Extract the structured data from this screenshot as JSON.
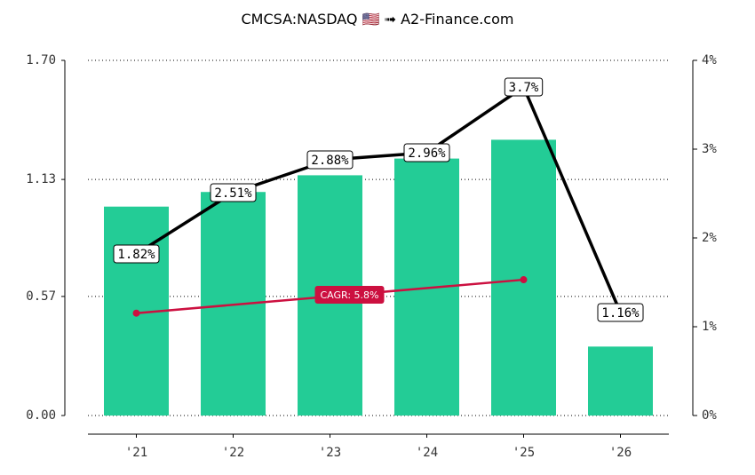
{
  "chart_data": {
    "type": "bar",
    "title": "CMCSA:NASDAQ 🇺🇸 ➟ A2-Finance.com",
    "categories": [
      "'21",
      "'22",
      "'23",
      "'24",
      "'25",
      "'26"
    ],
    "series": [
      {
        "values": [
          1.0,
          1.07,
          1.15,
          1.23,
          1.32,
          0.33
        ]
      }
    ],
    "line_series": {
      "axis": "right",
      "values": [
        1.82,
        2.51,
        2.88,
        2.96,
        3.7,
        1.16
      ],
      "labels": [
        "1.82%",
        "2.51%",
        "2.88%",
        "2.96%",
        "3.7%",
        "1.16%"
      ]
    },
    "cagr": {
      "label": "CAGR: 5.8%",
      "start_index": 0,
      "end_index": 4,
      "start_value": 0.49,
      "end_value": 0.65
    },
    "left_axis": {
      "ylim": [
        0,
        1.7
      ],
      "ticks": [
        0,
        0.57,
        1.13,
        1.7
      ],
      "tick_labels": [
        "0.00",
        "0.57",
        "1.13",
        "1.70"
      ]
    },
    "right_axis": {
      "ylim": [
        0,
        4
      ],
      "ticks": [
        0,
        1,
        2,
        3,
        4
      ],
      "tick_labels": [
        "0%",
        "1%",
        "2%",
        "3%",
        "4%"
      ]
    },
    "grid": "horizontal-dotted",
    "colors": {
      "bars": "#23cc96",
      "line": "#000000",
      "cagr": "#cc1040"
    }
  }
}
